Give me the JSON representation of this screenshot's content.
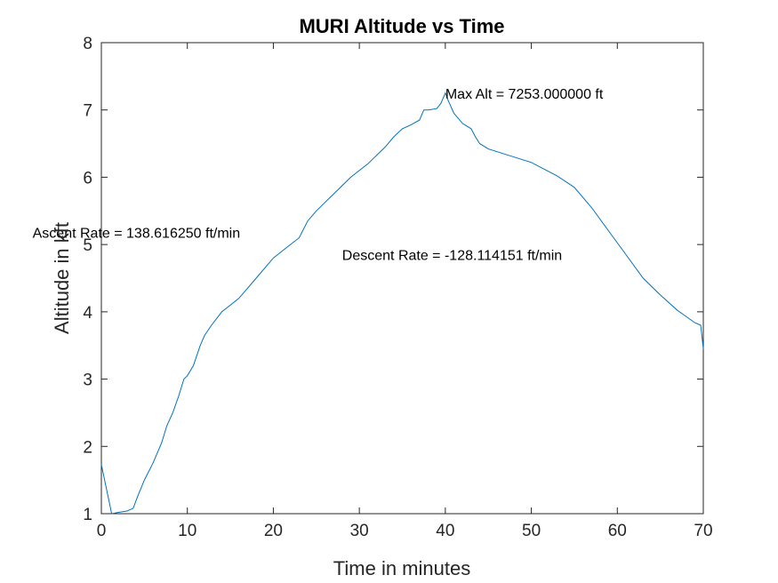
{
  "chart_data": {
    "type": "line",
    "title": "MURI Altitude vs Time",
    "xlabel": "Time in minutes",
    "ylabel": "Altitude in kft",
    "xlim": [
      0,
      70
    ],
    "ylim": [
      1,
      8
    ],
    "xticks": [
      "0",
      "10",
      "20",
      "30",
      "40",
      "50",
      "60",
      "70"
    ],
    "yticks": [
      "1",
      "2",
      "3",
      "4",
      "5",
      "6",
      "7",
      "8"
    ],
    "grid": false,
    "line_color": "#0072BD",
    "series": [
      {
        "x": [
          0,
          1.2,
          2,
          3,
          3.7,
          4.2,
          5,
          6,
          7,
          7.6,
          8.3,
          9,
          9.6,
          10,
          10.7,
          11.5,
          12,
          12.8,
          14,
          16,
          18,
          20,
          21.5,
          23,
          24,
          25,
          27,
          29,
          31,
          33,
          34,
          35,
          36,
          37,
          37.5,
          38,
          39,
          39.5,
          40,
          40.3,
          41,
          42,
          43,
          43.5,
          44,
          45,
          47,
          50,
          53,
          55,
          57,
          59,
          61,
          63,
          65,
          67,
          69,
          69.7,
          70
        ],
        "values": [
          1.73,
          1.0,
          1.02,
          1.04,
          1.08,
          1.25,
          1.5,
          1.75,
          2.05,
          2.3,
          2.5,
          2.75,
          3.0,
          3.05,
          3.2,
          3.5,
          3.65,
          3.8,
          4.0,
          4.2,
          4.5,
          4.8,
          4.95,
          5.1,
          5.35,
          5.5,
          5.75,
          6.0,
          6.2,
          6.45,
          6.6,
          6.72,
          6.78,
          6.85,
          7.0,
          7.0,
          7.02,
          7.1,
          7.253,
          7.15,
          6.95,
          6.8,
          6.72,
          6.6,
          6.5,
          6.42,
          6.34,
          6.22,
          6.02,
          5.85,
          5.55,
          5.2,
          4.85,
          4.5,
          4.25,
          4.02,
          3.84,
          3.8,
          3.45
        ]
      }
    ],
    "annotations": [
      {
        "text": "Ascent Rate = 138.616250 ft/min",
        "x": -8,
        "y": 5.18
      },
      {
        "text": "Descent Rate = -128.114151 ft/min",
        "x": 28,
        "y": 4.85
      },
      {
        "text": "Max Alt = 7253.000000 ft",
        "x": 40,
        "y": 7.25
      }
    ]
  }
}
